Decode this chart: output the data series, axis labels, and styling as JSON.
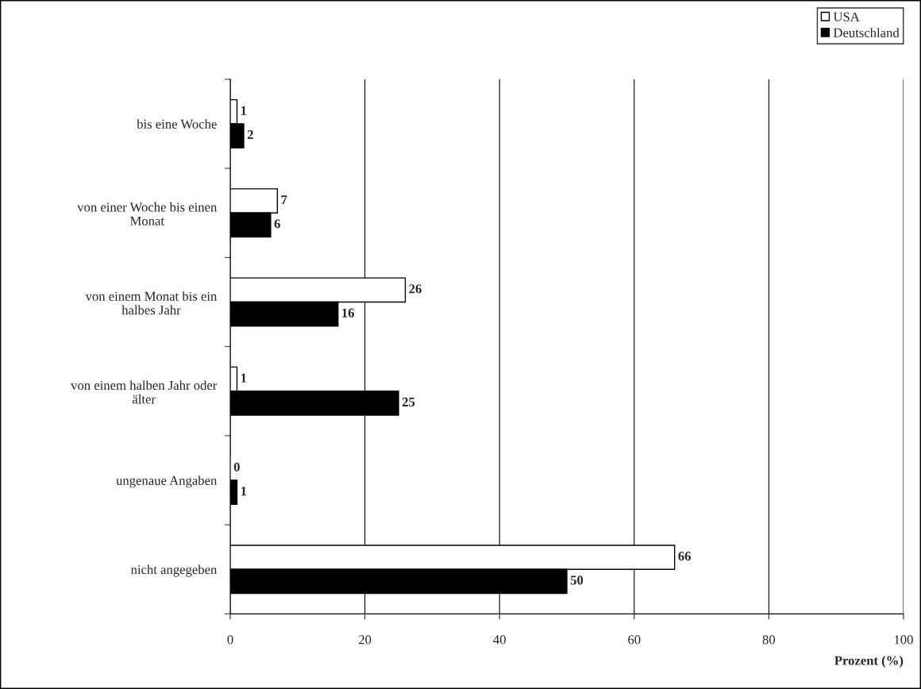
{
  "chart_data": {
    "type": "bar",
    "orientation": "horizontal",
    "xlabel": "Prozent (%)",
    "categories": [
      "bis eine Woche",
      "von einer Woche bis einen Monat",
      "von einem Monat bis ein halbes Jahr",
      "von einem halben Jahr oder älter",
      "ungenaue Angaben",
      "nicht angegeben"
    ],
    "series": [
      {
        "name": "USA",
        "color": "#ffffff",
        "values": [
          1,
          7,
          26,
          1,
          0,
          66
        ]
      },
      {
        "name": "Deutschland",
        "color": "#000000",
        "values": [
          2,
          6,
          16,
          25,
          1,
          50
        ]
      }
    ],
    "xlim": [
      0,
      100
    ],
    "xticks": [
      0,
      20,
      40,
      60,
      80,
      100
    ],
    "grid": "x",
    "legend": "top right",
    "data_labels": true
  }
}
